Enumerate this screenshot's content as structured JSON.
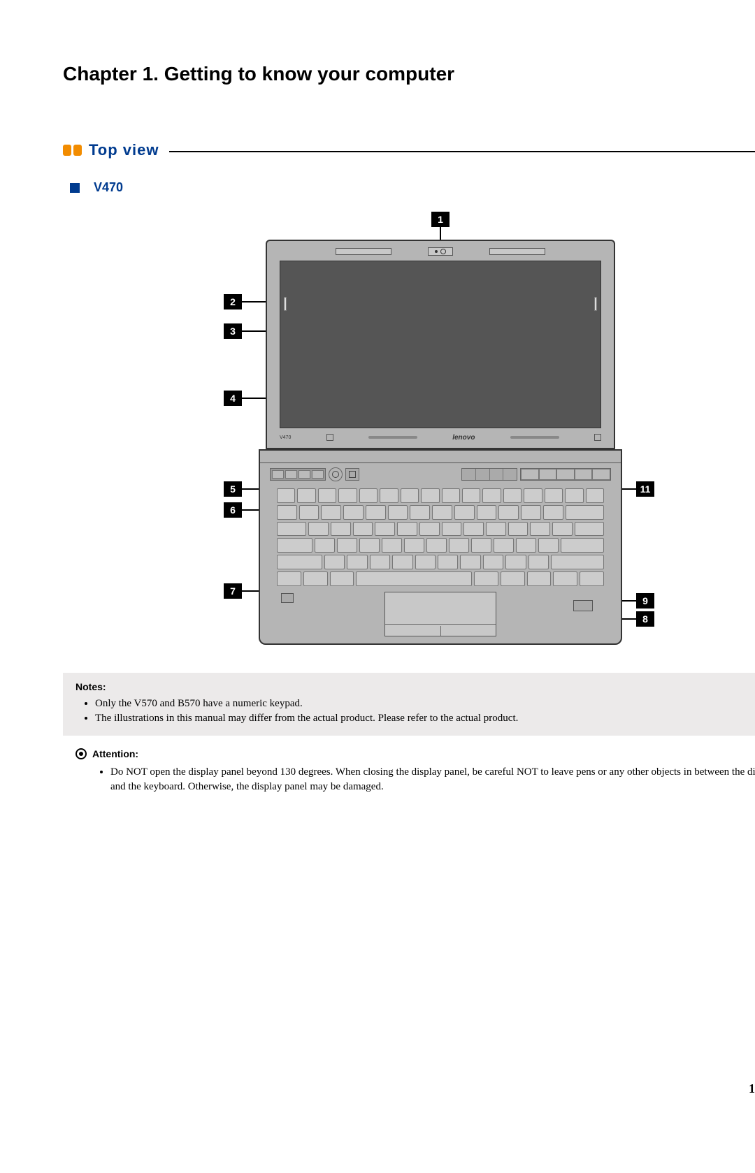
{
  "chapter_title": "Chapter 1. Getting to know your computer",
  "section": {
    "title": "Top view",
    "accent_color": "#f28c00",
    "title_color": "#003b8f"
  },
  "subsection": {
    "title": "V470",
    "bullet_color": "#003b8f"
  },
  "diagram": {
    "brand_text": "lenovo",
    "model_text": "V470",
    "callouts": {
      "c1": "1",
      "c2": "2",
      "c3": "3",
      "c4": "4",
      "c5": "5",
      "c6": "6",
      "c7": "7",
      "c8": "8",
      "c9": "9",
      "c11": "11"
    },
    "callout_bg": "#000000",
    "callout_fg": "#ffffff",
    "laptop_fill": "#b5b5b5",
    "screen_fill": "#555555",
    "key_fill": "#cccccc"
  },
  "notes": {
    "heading": "Notes:",
    "items": [
      "Only the V570 and B570 have a numeric keypad.",
      "The illustrations in this manual may differ from the actual product. Please refer to the actual product."
    ],
    "box_bg": "#eceaea"
  },
  "attention": {
    "heading": "Attention:",
    "items": [
      "Do NOT open the display panel beyond 130 degrees. When closing the display panel, be careful NOT to leave pens or any other objects in between the display panel and the keyboard. Otherwise, the display panel may be damaged."
    ]
  },
  "page_number": "1"
}
